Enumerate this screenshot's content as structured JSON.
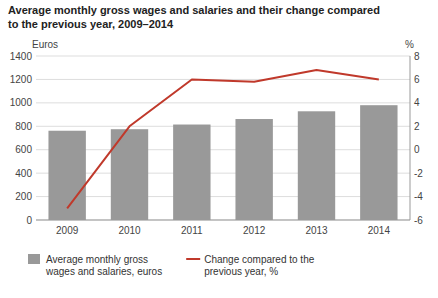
{
  "chart_data": {
    "type": "bar",
    "title": "Average monthly gross wages and salaries and their change compared\nto the previous year, 2009–2014",
    "categories": [
      "2009",
      "2010",
      "2011",
      "2012",
      "2013",
      "2014"
    ],
    "series": [
      {
        "name": "Average monthly gross\nwages and salaries, euros",
        "type": "bar",
        "color": "#999999",
        "values": [
          762,
          775,
          815,
          862,
          928,
          980
        ]
      },
      {
        "name": "Change compared to the\nprevious year, %",
        "type": "line",
        "color": "#c0392b",
        "axis": "y2",
        "values": [
          -5.0,
          2.0,
          6.0,
          5.8,
          6.8,
          6.0
        ]
      }
    ],
    "ylabel": "Euros",
    "y2label": "%",
    "ylim": [
      0,
      1400
    ],
    "yticks": [
      0,
      200,
      400,
      600,
      800,
      1000,
      1200,
      1400
    ],
    "y2lim": [
      -6,
      8
    ],
    "y2ticks": [
      -6,
      -4,
      -2,
      0,
      2,
      4,
      6,
      8
    ],
    "grid": true,
    "legend": "lower left"
  }
}
